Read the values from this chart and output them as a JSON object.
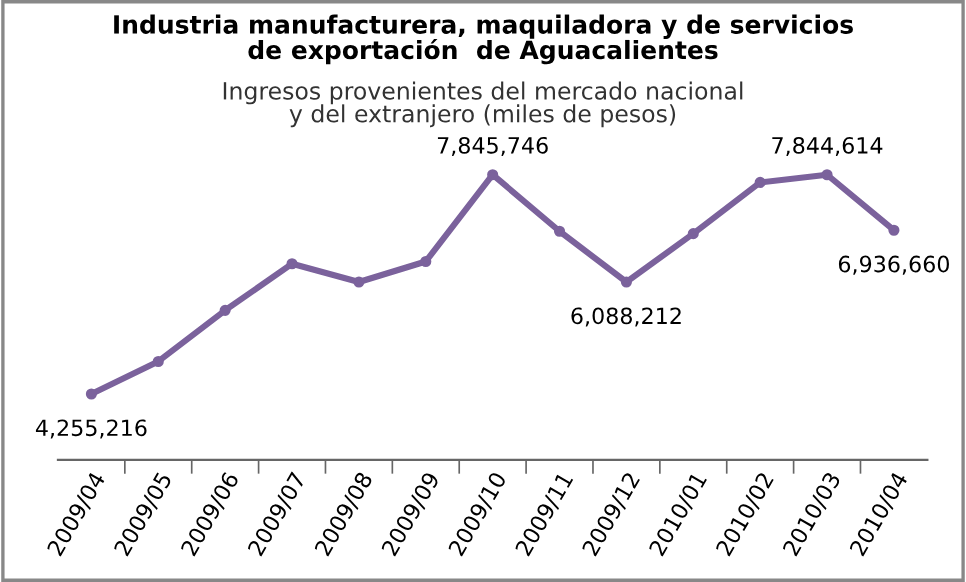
{
  "chart_data": {
    "type": "line",
    "title": "Industria manufacturera, maquiladora y de servicios\nde exportación  de Aguacalientes",
    "subtitle": "Ingresos provenientes del mercado nacional\ny del extranjero (miles de pesos)",
    "categories": [
      "2009/04",
      "2009/05",
      "2009/06",
      "2009/07",
      "2009/08",
      "2009/09",
      "2009/10",
      "2009/11",
      "2009/12",
      "2010/01",
      "2010/02",
      "2010/03",
      "2010/04"
    ],
    "series": [
      {
        "color": "#7b629c",
        "values": [
          4255216,
          4788000,
          5625000,
          6387000,
          6088000,
          6425000,
          7845746,
          6919000,
          6088212,
          6881000,
          7719000,
          7844614,
          6936660
        ],
        "value_labels": [
          "4,255,216",
          null,
          null,
          null,
          null,
          null,
          "7,845,746",
          null,
          "6,088,212",
          null,
          null,
          "7,844,614",
          "6,936,660"
        ]
      }
    ],
    "marker": "circle",
    "line_style": "solid",
    "grid": false,
    "legend": false,
    "tick_labels": "x"
  }
}
